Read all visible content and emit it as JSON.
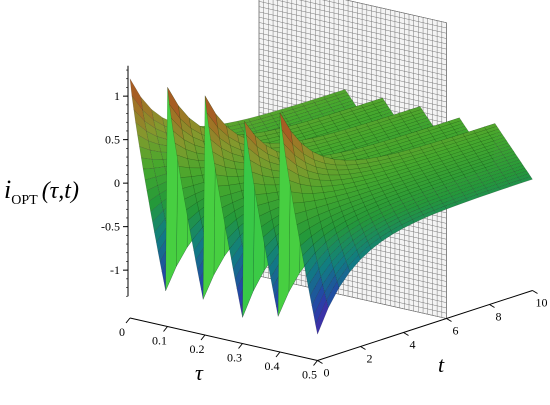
{
  "chart_data": {
    "type": "surface3d",
    "title": "",
    "zlabel": {
      "main": "i",
      "sub": "OPT",
      "args": "(τ,t)"
    },
    "xlabel": "τ",
    "ylabel": "t",
    "tau_range": [
      0,
      0.5
    ],
    "t_range": [
      0,
      10
    ],
    "z_range": [
      -1.3,
      1.3
    ],
    "tau_ticks": [
      "0",
      "0.1",
      "0.2",
      "0.3",
      "0.4",
      "0.5"
    ],
    "t_ticks": [
      "0",
      "2",
      "4",
      "6",
      "8",
      "10"
    ],
    "z_ticks": [
      "-1",
      "-0.5",
      "0",
      "0.5",
      "1"
    ],
    "sawtooth_periods": 5,
    "peak_value": 1.2,
    "trough_value": -1.25,
    "decay_time_constant": 1.6,
    "steady_amplitude": 0.3,
    "cut_plane_t": 6,
    "colormap": [
      "#7a1fd6",
      "#2f55d8",
      "#15a0a8",
      "#2fc44a",
      "#5ad83a",
      "#a9c43a",
      "#d8852e",
      "#c8302a"
    ],
    "grid": true
  }
}
